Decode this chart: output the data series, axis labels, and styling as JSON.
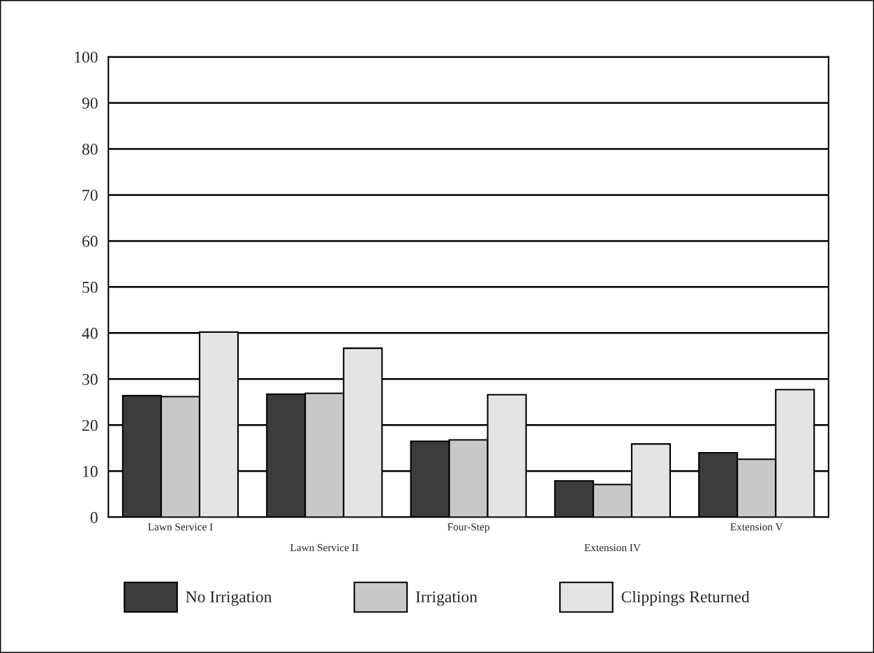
{
  "chart_data": {
    "type": "bar",
    "categories": [
      "Lawn Service I",
      "Lawn Service II",
      "Four-Step",
      "Extension IV",
      "Extension V"
    ],
    "series": [
      {
        "name": "No Irrigation",
        "color": "#3c3c3c",
        "values": [
          26.4,
          26.7,
          16.5,
          7.9,
          14.0
        ]
      },
      {
        "name": "Irrigation",
        "color": "#c8c8c8",
        "values": [
          26.2,
          26.9,
          16.8,
          7.1,
          12.6
        ]
      },
      {
        "name": "Clippings Returned",
        "color": "#e4e4e4",
        "values": [
          40.2,
          36.7,
          26.6,
          15.9,
          27.7
        ]
      }
    ],
    "ylim": [
      0,
      100
    ],
    "yticks": [
      0,
      10,
      20,
      30,
      40,
      50,
      60,
      70,
      80,
      90,
      100
    ],
    "grid": "y",
    "legend": "bottom"
  }
}
